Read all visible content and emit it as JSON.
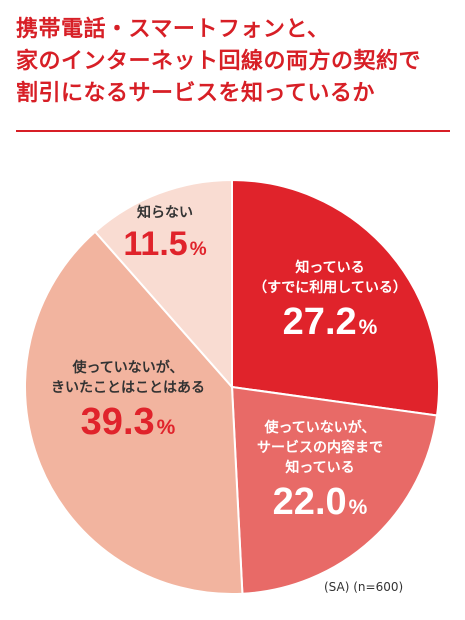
{
  "title": {
    "lines": [
      "携帯電話・スマートフォンと、",
      "家のインターネット回線の両方の契約で",
      "割引になるサービスを知っているか"
    ]
  },
  "note": "(SA) (n=600)",
  "colors": {
    "title": "#d71f26",
    "slice_1": "#e0232b",
    "slice_2": "#e86a67",
    "slice_3": "#f2b49f",
    "slice_4": "#f9dcd2",
    "label_dark": "#e0232b"
  },
  "chart_data": {
    "type": "pie",
    "title": "携帯電話・スマートフォンと、家のインターネット回線の両方の契約で割引になるサービスを知っているか",
    "slices": [
      {
        "label": [
          "知っている",
          "（すでに利用している）"
        ],
        "value": 27.2,
        "value_text": "27.2",
        "unit": "%"
      },
      {
        "label": [
          "使っていないが、",
          "サービスの内容まで",
          "知っている"
        ],
        "value": 22.0,
        "value_text": "22.0",
        "unit": "%"
      },
      {
        "label": [
          "使っていないが、",
          "きいたことはことはある"
        ],
        "value": 39.3,
        "value_text": "39.3",
        "unit": "%"
      },
      {
        "label": [
          "知らない"
        ],
        "value": 11.5,
        "value_text": "11.5",
        "unit": "%"
      }
    ],
    "start": "12 o'clock",
    "direction": "clockwise",
    "note": "(SA) (n=600)"
  }
}
